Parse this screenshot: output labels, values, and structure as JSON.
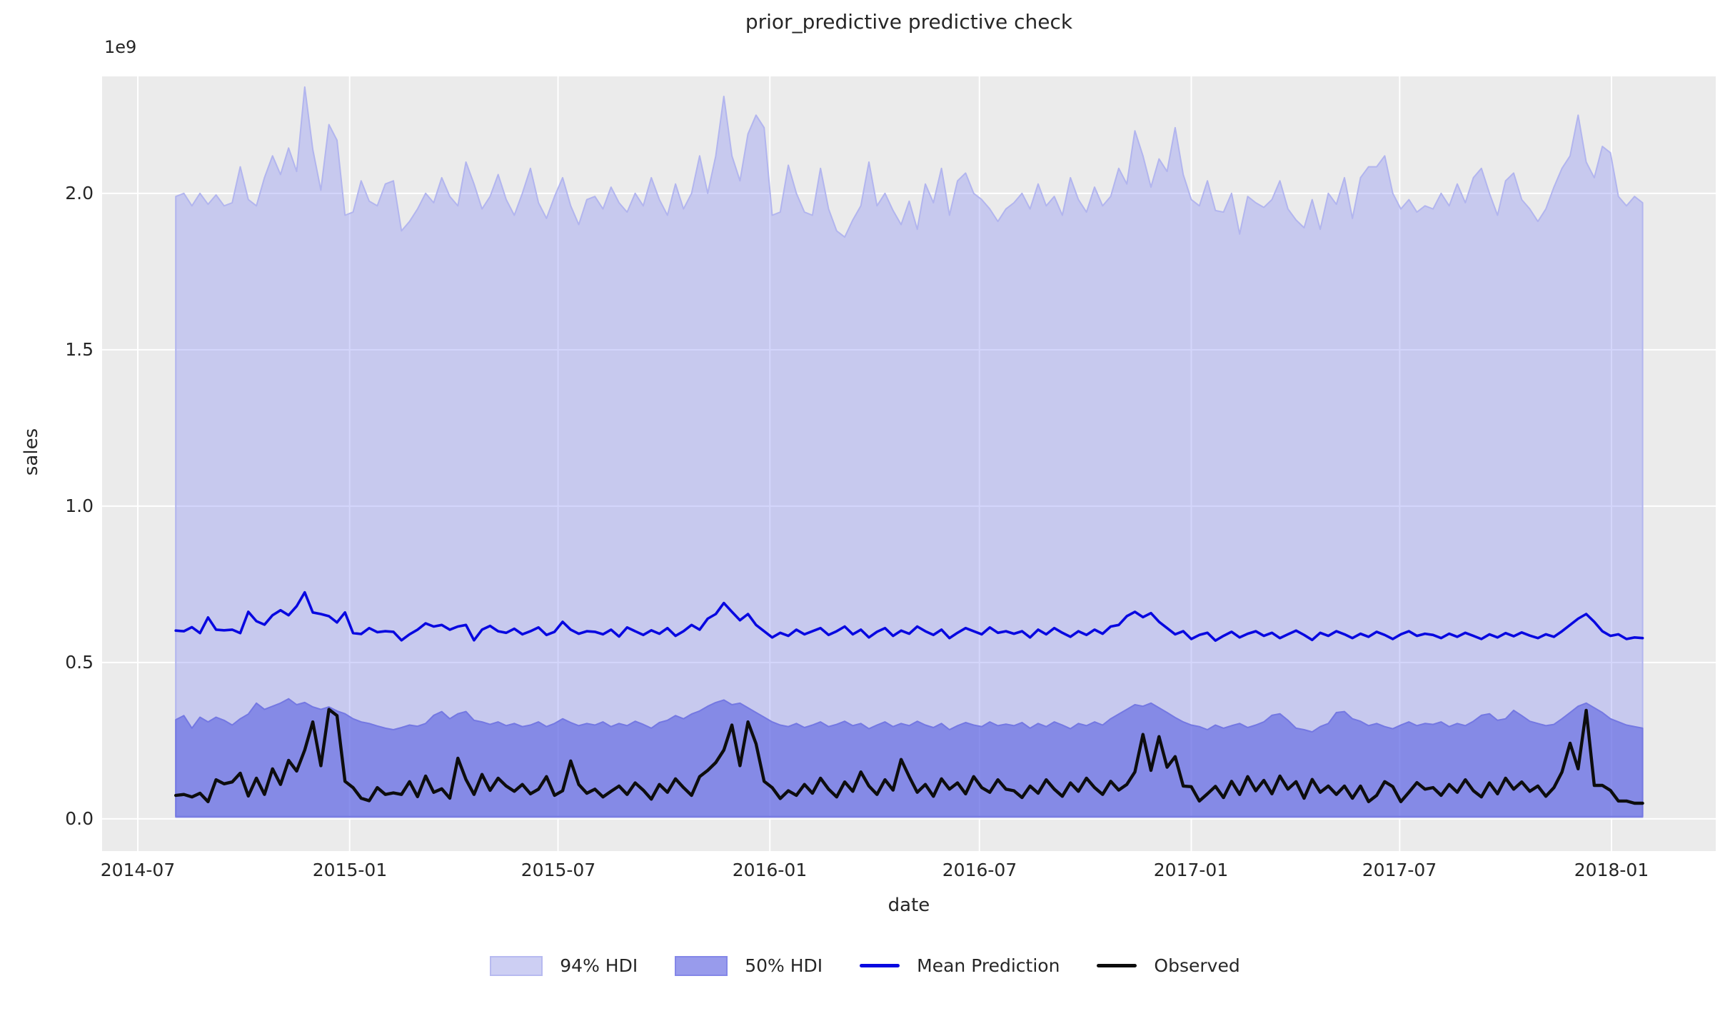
{
  "title": "prior_predictive predictive check",
  "axes": {
    "xlabel": "date",
    "ylabel": "sales",
    "offset_text": "1e9",
    "background": "#ebebeb",
    "grid_color": "#ffffff",
    "text_color": "#262626"
  },
  "legend": {
    "items": [
      {
        "label": "94% HDI",
        "kind": "band",
        "fill": "#cdcff3",
        "edge": "#b7baf0"
      },
      {
        "label": "50% HDI",
        "kind": "band",
        "fill": "#989bec",
        "edge": "#8487e8"
      },
      {
        "label": "Mean Prediction",
        "kind": "line",
        "color": "#0808e0"
      },
      {
        "label": "Observed",
        "kind": "line",
        "color": "#0d0d0d"
      }
    ]
  },
  "chart_data": {
    "type": "line",
    "title": "prior_predictive predictive check",
    "xlabel": "date",
    "ylabel": "sales",
    "y_unit": "1e9",
    "ylim": [
      -0.103,
      2.374
    ],
    "y_ticks": [
      0.0,
      0.5,
      1.0,
      1.5,
      2.0
    ],
    "y_tick_labels": [
      "0.0",
      "0.5",
      "1.0",
      "1.5",
      "2.0"
    ],
    "x_axis": {
      "epoch": "2014-07-01",
      "tick_days": [
        0,
        184,
        365,
        549,
        731,
        915,
        1096,
        1280
      ],
      "tick_labels": [
        "2014-07",
        "2015-01",
        "2015-07",
        "2016-01",
        "2016-07",
        "2017-01",
        "2017-07",
        "2018-01"
      ],
      "xlim_days": [
        -31,
        1370.5
      ],
      "data_start_date": "2014-08-03",
      "data_start_day": 33,
      "step_days": 7,
      "n_points": 183
    },
    "series": [
      {
        "name": "94% HDI",
        "type": "band",
        "fill": "rgba(132,138,244,0.35)",
        "edge": "#b2b5ee",
        "lower": 0.005,
        "upper": [
          1.99,
          2.0,
          1.96,
          2.0,
          1.965,
          1.995,
          1.96,
          1.97,
          2.085,
          1.98,
          1.96,
          2.05,
          2.12,
          2.06,
          2.145,
          2.07,
          2.34,
          2.14,
          2.01,
          2.22,
          2.17,
          1.93,
          1.94,
          2.04,
          1.975,
          1.96,
          2.03,
          2.04,
          1.88,
          1.91,
          1.95,
          2.0,
          1.97,
          2.05,
          1.99,
          1.96,
          2.1,
          2.03,
          1.95,
          1.99,
          2.06,
          1.98,
          1.93,
          2.0,
          2.08,
          1.97,
          1.92,
          1.99,
          2.05,
          1.96,
          1.9,
          1.98,
          1.99,
          1.95,
          2.02,
          1.97,
          1.94,
          2.0,
          1.96,
          2.05,
          1.98,
          1.93,
          2.03,
          1.95,
          2.0,
          2.12,
          2.0,
          2.12,
          2.31,
          2.12,
          2.04,
          2.19,
          2.25,
          2.21,
          1.93,
          1.94,
          2.09,
          2.0,
          1.94,
          1.93,
          2.08,
          1.95,
          1.88,
          1.86,
          1.915,
          1.96,
          2.1,
          1.96,
          2.0,
          1.945,
          1.9,
          1.975,
          1.885,
          2.03,
          1.97,
          2.08,
          1.93,
          2.04,
          2.065,
          2.0,
          1.98,
          1.95,
          1.91,
          1.95,
          1.97,
          2.0,
          1.95,
          2.03,
          1.96,
          1.99,
          1.93,
          2.05,
          1.98,
          1.94,
          2.02,
          1.96,
          1.99,
          2.08,
          2.03,
          2.2,
          2.12,
          2.02,
          2.11,
          2.07,
          2.21,
          2.06,
          1.98,
          1.96,
          2.04,
          1.945,
          1.94,
          2.0,
          1.87,
          1.99,
          1.97,
          1.955,
          1.98,
          2.04,
          1.95,
          1.915,
          1.89,
          1.98,
          1.885,
          2.0,
          1.965,
          2.05,
          1.92,
          2.05,
          2.085,
          2.085,
          2.12,
          2.0,
          1.95,
          1.98,
          1.94,
          1.96,
          1.95,
          2.0,
          1.96,
          2.03,
          1.97,
          2.05,
          2.08,
          2.0,
          1.93,
          2.04,
          2.065,
          1.98,
          1.95,
          1.91,
          1.95,
          2.02,
          2.08,
          2.12,
          2.25,
          2.1,
          2.05,
          2.15,
          2.13,
          1.99,
          1.96,
          1.99,
          1.97
        ]
      },
      {
        "name": "50% HDI",
        "type": "band",
        "fill": "rgba(99,104,226,0.65)",
        "edge": "#7478e2",
        "lower": 0.007,
        "upper": [
          0.317,
          0.33,
          0.29,
          0.325,
          0.31,
          0.325,
          0.315,
          0.3,
          0.32,
          0.335,
          0.37,
          0.35,
          0.36,
          0.37,
          0.384,
          0.365,
          0.372,
          0.358,
          0.35,
          0.358,
          0.345,
          0.336,
          0.32,
          0.31,
          0.305,
          0.297,
          0.29,
          0.285,
          0.292,
          0.3,
          0.296,
          0.305,
          0.331,
          0.343,
          0.32,
          0.336,
          0.343,
          0.315,
          0.31,
          0.302,
          0.31,
          0.298,
          0.305,
          0.295,
          0.3,
          0.31,
          0.295,
          0.305,
          0.32,
          0.308,
          0.298,
          0.305,
          0.3,
          0.31,
          0.295,
          0.305,
          0.298,
          0.312,
          0.302,
          0.29,
          0.308,
          0.315,
          0.33,
          0.32,
          0.335,
          0.345,
          0.36,
          0.372,
          0.38,
          0.365,
          0.37,
          0.355,
          0.34,
          0.325,
          0.31,
          0.3,
          0.295,
          0.305,
          0.292,
          0.3,
          0.31,
          0.295,
          0.302,
          0.312,
          0.298,
          0.305,
          0.288,
          0.3,
          0.31,
          0.295,
          0.305,
          0.298,
          0.312,
          0.3,
          0.292,
          0.305,
          0.285,
          0.298,
          0.308,
          0.3,
          0.295,
          0.31,
          0.298,
          0.303,
          0.298,
          0.308,
          0.29,
          0.305,
          0.295,
          0.31,
          0.3,
          0.288,
          0.305,
          0.298,
          0.31,
          0.3,
          0.32,
          0.335,
          0.35,
          0.365,
          0.36,
          0.37,
          0.355,
          0.34,
          0.324,
          0.31,
          0.3,
          0.295,
          0.285,
          0.3,
          0.29,
          0.298,
          0.305,
          0.292,
          0.3,
          0.31,
          0.331,
          0.336,
          0.315,
          0.29,
          0.285,
          0.278,
          0.295,
          0.305,
          0.34,
          0.343,
          0.32,
          0.312,
          0.298,
          0.305,
          0.295,
          0.288,
          0.3,
          0.31,
          0.298,
          0.305,
          0.302,
          0.31,
          0.295,
          0.305,
          0.298,
          0.312,
          0.331,
          0.336,
          0.315,
          0.32,
          0.347,
          0.33,
          0.312,
          0.305,
          0.298,
          0.302,
          0.32,
          0.34,
          0.36,
          0.37,
          0.355,
          0.34,
          0.32,
          0.31,
          0.3,
          0.295,
          0.29
        ]
      },
      {
        "name": "Mean Prediction",
        "type": "line",
        "color": "#0808e0",
        "values": [
          0.602,
          0.6,
          0.613,
          0.594,
          0.644,
          0.605,
          0.603,
          0.605,
          0.594,
          0.662,
          0.632,
          0.621,
          0.651,
          0.667,
          0.651,
          0.68,
          0.724,
          0.66,
          0.655,
          0.648,
          0.628,
          0.66,
          0.594,
          0.591,
          0.61,
          0.597,
          0.6,
          0.598,
          0.571,
          0.59,
          0.605,
          0.625,
          0.615,
          0.62,
          0.605,
          0.615,
          0.62,
          0.571,
          0.605,
          0.617,
          0.6,
          0.595,
          0.608,
          0.59,
          0.6,
          0.612,
          0.588,
          0.598,
          0.63,
          0.605,
          0.592,
          0.6,
          0.598,
          0.59,
          0.605,
          0.583,
          0.612,
          0.6,
          0.588,
          0.603,
          0.592,
          0.61,
          0.585,
          0.6,
          0.62,
          0.605,
          0.64,
          0.655,
          0.69,
          0.662,
          0.635,
          0.655,
          0.62,
          0.6,
          0.58,
          0.595,
          0.585,
          0.605,
          0.59,
          0.6,
          0.61,
          0.588,
          0.6,
          0.615,
          0.59,
          0.605,
          0.58,
          0.598,
          0.61,
          0.585,
          0.602,
          0.592,
          0.615,
          0.6,
          0.588,
          0.605,
          0.578,
          0.595,
          0.61,
          0.6,
          0.59,
          0.612,
          0.595,
          0.6,
          0.592,
          0.6,
          0.58,
          0.605,
          0.59,
          0.61,
          0.595,
          0.582,
          0.6,
          0.588,
          0.605,
          0.592,
          0.615,
          0.62,
          0.648,
          0.662,
          0.645,
          0.658,
          0.63,
          0.61,
          0.59,
          0.6,
          0.575,
          0.588,
          0.595,
          0.57,
          0.585,
          0.598,
          0.58,
          0.592,
          0.6,
          0.585,
          0.595,
          0.578,
          0.59,
          0.602,
          0.588,
          0.572,
          0.595,
          0.585,
          0.6,
          0.59,
          0.578,
          0.592,
          0.582,
          0.598,
          0.588,
          0.575,
          0.59,
          0.6,
          0.585,
          0.592,
          0.588,
          0.578,
          0.592,
          0.582,
          0.595,
          0.585,
          0.575,
          0.59,
          0.58,
          0.594,
          0.584,
          0.596,
          0.586,
          0.578,
          0.59,
          0.582,
          0.6,
          0.62,
          0.64,
          0.655,
          0.63,
          0.6,
          0.585,
          0.59,
          0.575,
          0.58,
          0.578
        ]
      },
      {
        "name": "Observed",
        "type": "line",
        "color": "#0d0d0d",
        "values": [
          0.075,
          0.078,
          0.07,
          0.082,
          0.055,
          0.125,
          0.112,
          0.118,
          0.146,
          0.073,
          0.13,
          0.078,
          0.16,
          0.11,
          0.187,
          0.153,
          0.22,
          0.31,
          0.17,
          0.35,
          0.33,
          0.12,
          0.1,
          0.066,
          0.058,
          0.1,
          0.078,
          0.083,
          0.078,
          0.119,
          0.071,
          0.137,
          0.085,
          0.096,
          0.066,
          0.194,
          0.126,
          0.078,
          0.142,
          0.091,
          0.13,
          0.105,
          0.088,
          0.11,
          0.08,
          0.095,
          0.135,
          0.075,
          0.09,
          0.185,
          0.11,
          0.082,
          0.095,
          0.07,
          0.088,
          0.105,
          0.078,
          0.115,
          0.092,
          0.063,
          0.11,
          0.085,
          0.128,
          0.1,
          0.075,
          0.135,
          0.155,
          0.18,
          0.22,
          0.3,
          0.17,
          0.31,
          0.24,
          0.12,
          0.1,
          0.065,
          0.09,
          0.075,
          0.11,
          0.082,
          0.13,
          0.095,
          0.07,
          0.118,
          0.088,
          0.15,
          0.105,
          0.078,
          0.125,
          0.092,
          0.19,
          0.135,
          0.085,
          0.11,
          0.072,
          0.128,
          0.095,
          0.115,
          0.08,
          0.135,
          0.1,
          0.085,
          0.125,
          0.095,
          0.09,
          0.068,
          0.105,
          0.082,
          0.125,
          0.095,
          0.072,
          0.115,
          0.088,
          0.13,
          0.1,
          0.078,
          0.12,
          0.092,
          0.11,
          0.15,
          0.27,
          0.155,
          0.263,
          0.165,
          0.199,
          0.105,
          0.103,
          0.057,
          0.08,
          0.104,
          0.068,
          0.12,
          0.078,
          0.135,
          0.09,
          0.123,
          0.08,
          0.137,
          0.095,
          0.119,
          0.066,
          0.126,
          0.085,
          0.105,
          0.078,
          0.105,
          0.066,
          0.105,
          0.055,
          0.075,
          0.119,
          0.103,
          0.055,
          0.085,
          0.116,
          0.095,
          0.1,
          0.075,
          0.11,
          0.085,
          0.125,
          0.09,
          0.07,
          0.115,
          0.08,
          0.13,
          0.095,
          0.118,
          0.088,
          0.105,
          0.072,
          0.1,
          0.15,
          0.242,
          0.16,
          0.347,
          0.107,
          0.107,
          0.091,
          0.057,
          0.057,
          0.05,
          0.05
        ]
      }
    ]
  }
}
